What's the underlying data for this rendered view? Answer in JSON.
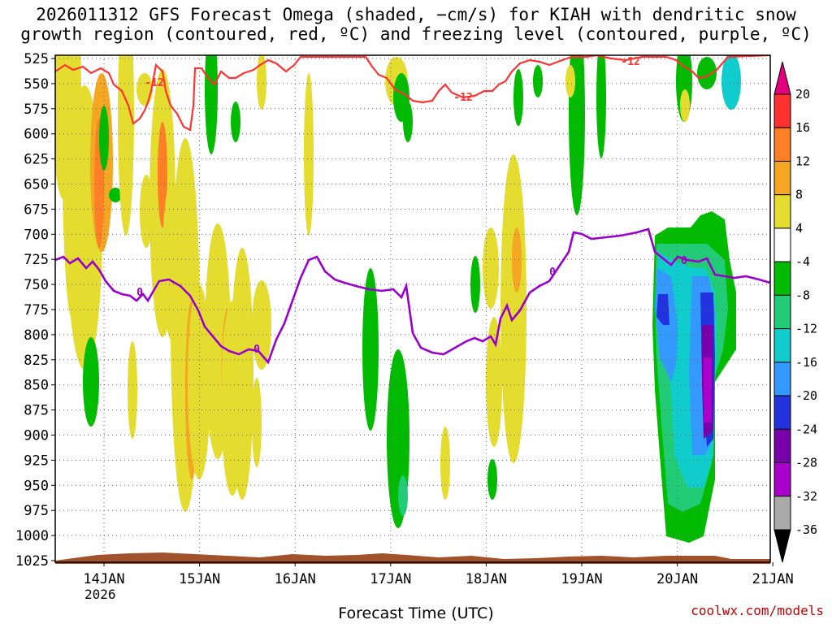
{
  "title_line1": "2026011312 GFS Forecast Omega (shaded, −cm/s) for KIAH with dendritic snow",
  "title_line2": "growth region (contoured, red, ºC) and freezing level (contoured, purple, ºC)",
  "xlabel": "Forecast Time (UTC)",
  "credit": "coolwx.com/models",
  "year_label": "2026",
  "chart_data": {
    "type": "heatmap",
    "y_ticks": [
      "525",
      "550",
      "575",
      "600",
      "625",
      "650",
      "675",
      "700",
      "725",
      "750",
      "775",
      "800",
      "825",
      "850",
      "875",
      "900",
      "925",
      "950",
      "975",
      "1000",
      "1025"
    ],
    "x_ticks": [
      "14JAN",
      "15JAN",
      "16JAN",
      "17JAN",
      "18JAN",
      "19JAN",
      "20JAN",
      "21JAN"
    ],
    "colorbar_labels": [
      "20",
      "16",
      "12",
      "8",
      "4",
      "-4",
      "-8",
      "-12",
      "-16",
      "-20",
      "-24",
      "-28",
      "-32",
      "-36"
    ],
    "colorbar_colors": [
      "#e3007f",
      "#ff3030",
      "#ff7f27",
      "#f5a623",
      "#e5dc30",
      "#ffffff",
      "#00bb00",
      "#22cc77",
      "#11cccc",
      "#3399ff",
      "#2233dd",
      "#7700aa",
      "#aa00cc",
      "#aaaaaa",
      "#000000"
    ],
    "contours": {
      "dendritic_label": "-12",
      "freezing_label": "0",
      "dendritic_color": "#ff3333",
      "freezing_color": "#9900cc"
    },
    "x_range": [
      "13JAN 12Z",
      "21JAN 00Z"
    ],
    "y_range": [
      525,
      1025
    ],
    "grid": true
  }
}
